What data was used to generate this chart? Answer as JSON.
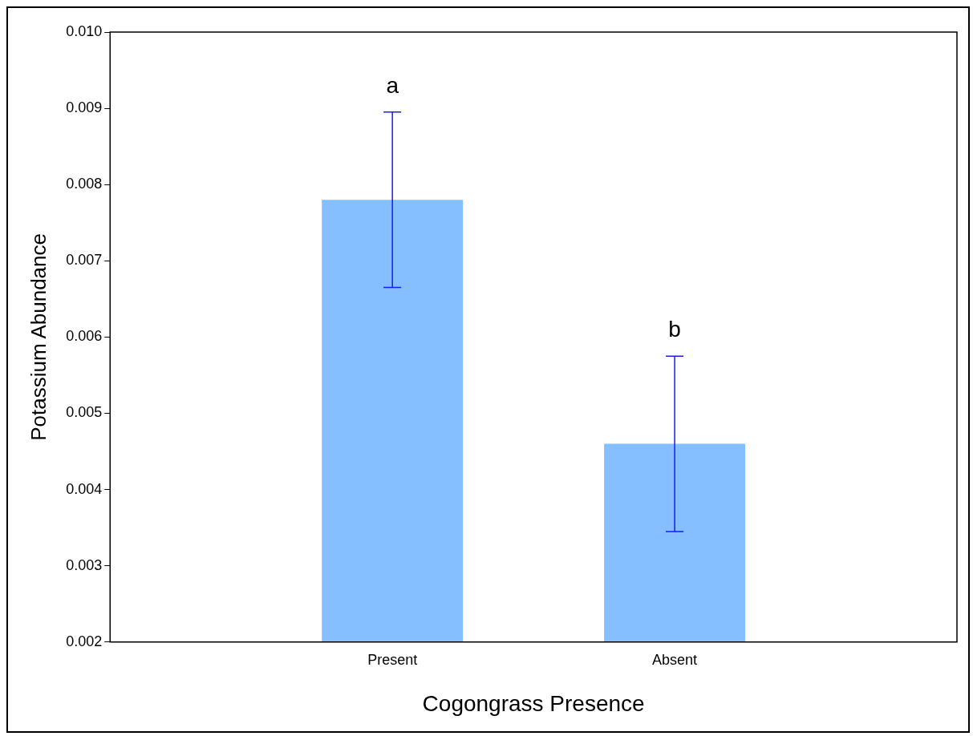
{
  "chart_data": {
    "type": "bar",
    "xlabel": "Cogongrass Presence",
    "ylabel": "Potassium Abundance",
    "categories": [
      "Present",
      "Absent"
    ],
    "values": [
      0.0078,
      0.0046
    ],
    "errors": [
      0.00115,
      0.00115
    ],
    "color": "#86bfff",
    "ylim": [
      0.002,
      0.01
    ],
    "yticks": [
      {
        "value": 0.002,
        "label": "0.002"
      },
      {
        "value": 0.003,
        "label": "0.003"
      },
      {
        "value": 0.004,
        "label": "0.004"
      },
      {
        "value": 0.005,
        "label": "0.005"
      },
      {
        "value": 0.006,
        "label": "0.006"
      },
      {
        "value": 0.007,
        "label": "0.007"
      },
      {
        "value": 0.008,
        "label": "0.008"
      },
      {
        "value": 0.009,
        "label": "0.009"
      },
      {
        "value": 0.01,
        "label": "0.010"
      }
    ],
    "annotations": [
      "a",
      "b"
    ],
    "grid": false,
    "legend": false
  }
}
